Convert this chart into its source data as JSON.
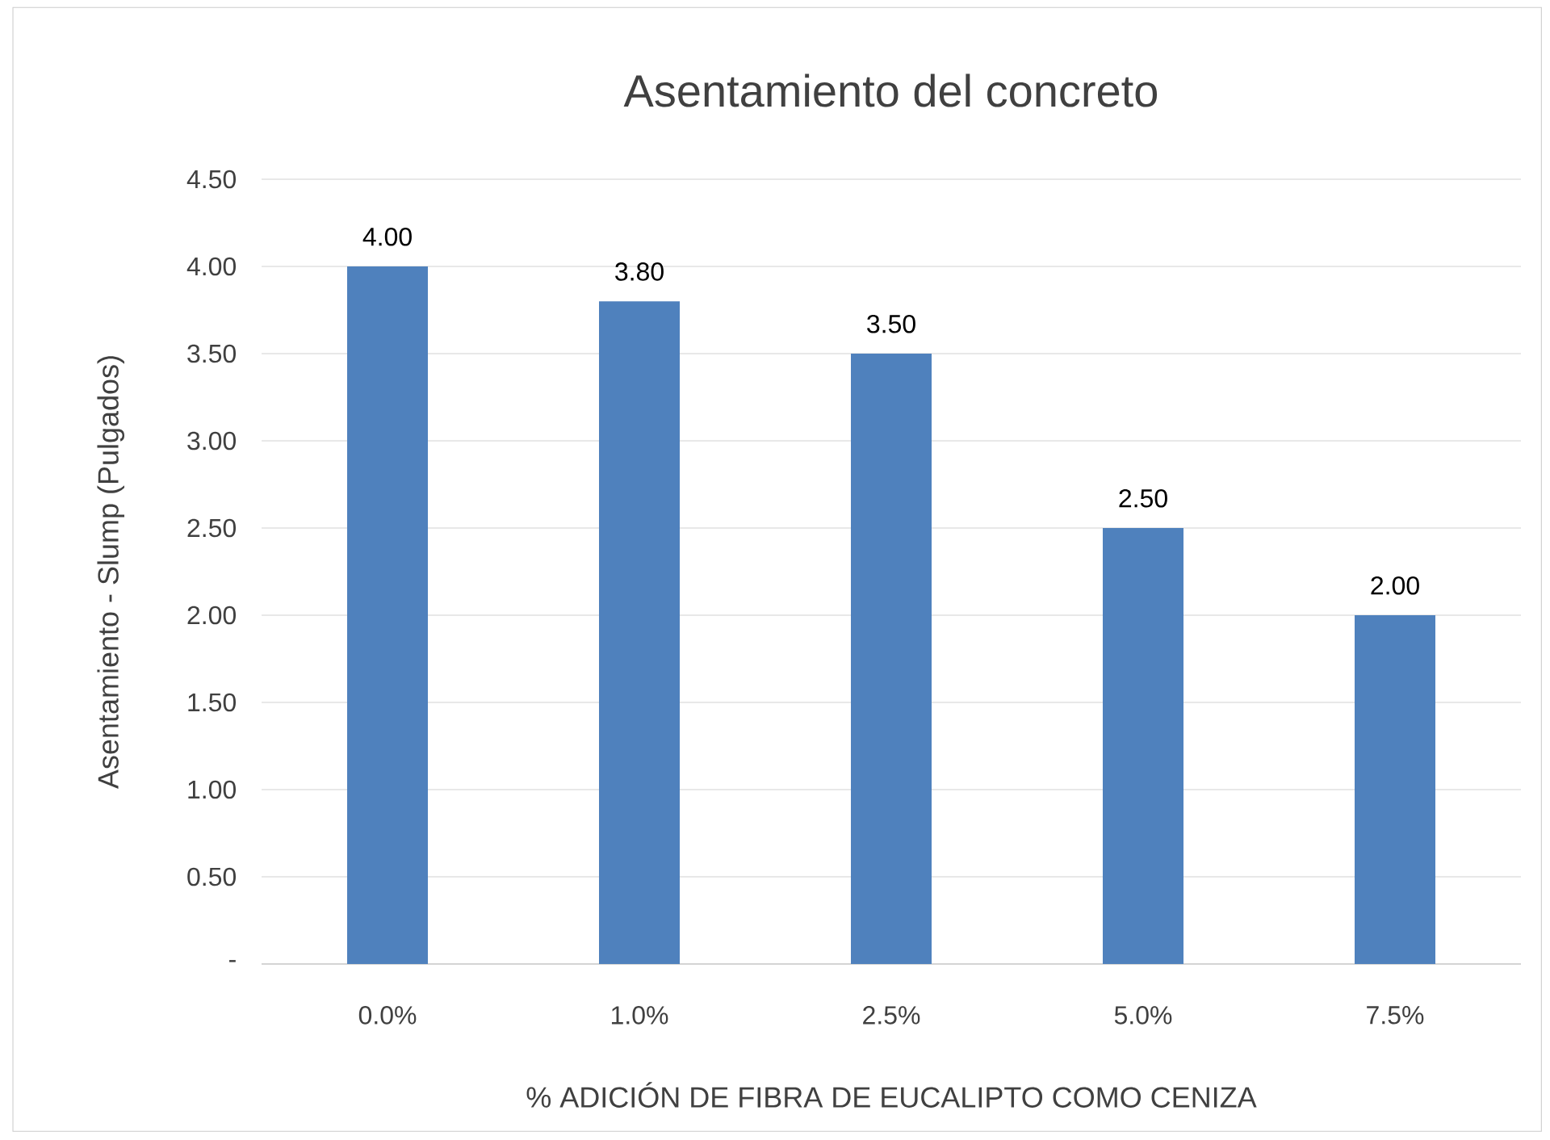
{
  "chart_data": {
    "type": "bar",
    "title": "Asentamiento del concreto",
    "xlabel": "% ADICIÓN DE FIBRA DE EUCALIPTO COMO CENIZA",
    "ylabel": "Asentamiento - Slump (Pulgados)",
    "categories": [
      "0.0%",
      "1.0%",
      "2.5%",
      "5.0%",
      "7.5%"
    ],
    "values": [
      4.0,
      3.8,
      3.5,
      2.5,
      2.0
    ],
    "value_labels": [
      "4.00",
      "3.80",
      "3.50",
      "2.50",
      "2.00"
    ],
    "color": "#4f81bd",
    "ylim": [
      0,
      4.5
    ],
    "yticks": [
      {
        "value": 0,
        "label": "-"
      },
      {
        "value": 0.5,
        "label": "0.50"
      },
      {
        "value": 1,
        "label": "1.00"
      },
      {
        "value": 1.5,
        "label": "1.50"
      },
      {
        "value": 2,
        "label": "2.00"
      },
      {
        "value": 2.5,
        "label": "2.50"
      },
      {
        "value": 3,
        "label": "3.00"
      },
      {
        "value": 3.5,
        "label": "3.50"
      },
      {
        "value": 4,
        "label": "4.00"
      },
      {
        "value": 4.5,
        "label": "4.50"
      }
    ],
    "grid": "y"
  }
}
